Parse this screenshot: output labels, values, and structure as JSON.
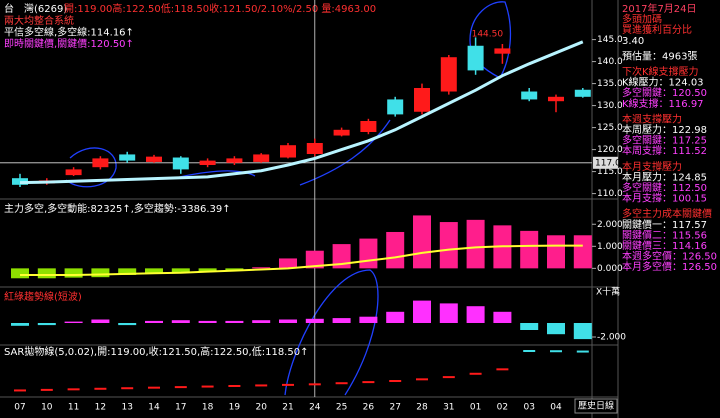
{
  "chart_data": {
    "type": "candlestick",
    "header": {
      "name": "台　灣(6269)",
      "quote": "開:119.00高:122.50低:118.50收:121.50/2.10%/2.50 量:4963.00"
    },
    "legend_lines": [
      {
        "text": "兩大均整合系統",
        "color": "#ff3b3b"
      },
      {
        "text": "平信多空線,多空線:114.16↑",
        "color": "#ffffff"
      },
      {
        "text": "即時關鍵價,關鍵價:120.50↑",
        "color": "#ff40ff"
      }
    ],
    "categories": [
      "07",
      "10",
      "11",
      "12",
      "13",
      "14",
      "17",
      "18",
      "19",
      "20",
      "21",
      "24",
      "25",
      "26",
      "27",
      "28",
      "31",
      "01",
      "02",
      "03",
      "04",
      null
    ],
    "open": [
      113.5,
      112.3,
      114.2,
      116,
      118.9,
      117.2,
      118.2,
      116.5,
      117,
      117.2,
      118.2,
      119,
      123.2,
      124,
      131.4,
      128.6,
      133.2,
      143.6,
      141.8,
      133.2,
      131,
      133.6
    ],
    "high": [
      114.5,
      113.5,
      116,
      118.5,
      119.5,
      118.8,
      118.5,
      118,
      118.5,
      119.2,
      121.5,
      122.5,
      125,
      127,
      132,
      135,
      141.5,
      145.5,
      144,
      134,
      132.5,
      134
    ],
    "low": [
      111.5,
      112,
      114,
      115.5,
      117,
      117,
      114.5,
      116,
      116.5,
      117,
      118,
      118.5,
      123,
      123.5,
      127.5,
      128,
      132.5,
      137,
      139.5,
      131,
      128.5,
      131.8
    ],
    "close": [
      112,
      113,
      115.5,
      118,
      117.5,
      118.4,
      115.5,
      117.5,
      118,
      118.9,
      121,
      121.5,
      124.5,
      126.5,
      128,
      134,
      141,
      138,
      143,
      131.4,
      132,
      132
    ],
    "up_color": "#ff1a1a",
    "down_color": "#40e0e8",
    "ma": {
      "color": "#b8f4ff",
      "values": [
        112.5,
        112.6,
        112.8,
        113,
        113.2,
        113.4,
        113.6,
        113.8,
        114.5,
        115.2,
        116.5,
        118,
        120,
        122,
        124.5,
        127.5,
        130.5,
        133.5,
        136.8,
        139.5,
        142,
        144.5
      ]
    },
    "ylim": [
      109,
      149
    ],
    "yticks": [
      {
        "value": 145,
        "label": "145.0"
      },
      {
        "value": 140,
        "label": "140.0"
      },
      {
        "value": 135,
        "label": "135.0"
      },
      {
        "value": 130,
        "label": "130.0"
      },
      {
        "value": 125,
        "label": "125.0"
      },
      {
        "value": 120,
        "label": "120.0"
      },
      {
        "value": 115,
        "label": "115.0"
      },
      {
        "value": 110,
        "label": "110.0"
      }
    ],
    "crosshair": {
      "value": 117,
      "label": "117.0",
      "index": 11
    },
    "annotation": {
      "text": "144.50",
      "value": 144.5,
      "index": 17
    },
    "main_force": {
      "title": "主力多空,多空動能:82325↑,多空趨勢:-3386.39↑",
      "values": [
        -0.45,
        -0.45,
        -0.42,
        -0.4,
        -0.3,
        -0.22,
        -0.18,
        -0.12,
        -0.08,
        0.05,
        0.45,
        0.8,
        1.1,
        1.35,
        1.65,
        2.4,
        2.1,
        2.2,
        1.95,
        1.7,
        1.5,
        1.5
      ],
      "neg_color": "#8fe000",
      "pos_color": "#ff1e8c",
      "line": {
        "color": "#ffff30",
        "values": [
          -0.3,
          -0.3,
          -0.3,
          -0.28,
          -0.25,
          -0.22,
          -0.2,
          -0.15,
          -0.1,
          -0.05,
          0,
          0.1,
          0.2,
          0.35,
          0.5,
          0.7,
          0.85,
          0.95,
          1.0,
          1.02,
          1.03,
          1.03
        ]
      },
      "ylim": [
        -0.8,
        3.1
      ],
      "yticks": [
        {
          "value": 2,
          "label": "2.000"
        },
        {
          "value": 1,
          "label": "1.000"
        },
        {
          "value": 0,
          "label": "0.000"
        }
      ]
    },
    "trend": {
      "title": "紅綠趨勢線(短波)",
      "unit_label": "X十萬",
      "values": [
        -0.4,
        -0.3,
        0.2,
        0.5,
        -0.3,
        0.3,
        0.4,
        0.3,
        0.3,
        0.4,
        0.5,
        0.6,
        0.7,
        0.9,
        1.6,
        3.2,
        2.8,
        2.4,
        1.6,
        -1.0,
        -1.6,
        -2.3
      ],
      "neg_color": "#40e0e8",
      "pos_color": "#ff30ff",
      "ylim": [
        -3,
        5
      ],
      "yticks": [
        {
          "value": -2,
          "label": "-2.000"
        }
      ]
    },
    "sar": {
      "title": "SAR拋物線(5,0.02),開:119.00,收:121.50,高:122.50,低:118.50↑",
      "values": [
        110,
        110.5,
        111,
        111.5,
        112,
        112.5,
        113,
        113.5,
        114,
        114.5,
        115,
        115.5,
        116.5,
        117.5,
        118.5,
        120,
        122,
        125,
        129,
        145.5,
        145.3,
        145
      ],
      "ylim": [
        105,
        150
      ]
    },
    "period_label": "歷史日線",
    "info": [
      [
        {
          "text": "2017年7月24日",
          "color": "#ff4060"
        },
        {
          "text": "多頭加碼",
          "color": "#ff3030"
        },
        {
          "text": "買進獲利百分比",
          "color": "#ff3030"
        },
        {
          "text": "3.40",
          "color": "#ffffff"
        }
      ],
      [
        {
          "text": "預估量：4963張",
          "color": "#ffffff"
        }
      ],
      [
        {
          "text": "下次K線支撐壓力",
          "color": "#ff3030"
        },
        {
          "text": "K線壓力：124.03",
          "color": "#ffffff"
        },
        {
          "text": "多空關鍵：120.50",
          "color": "#ff40ff"
        },
        {
          "text": "K線支撐：116.97",
          "color": "#ff40ff"
        }
      ],
      [
        {
          "text": "本週支撐壓力",
          "color": "#ff3030"
        },
        {
          "text": "本周壓力：122.98",
          "color": "#ffffff"
        },
        {
          "text": "多空關鍵：117.25",
          "color": "#ff40ff"
        },
        {
          "text": "本周支撐：111.52",
          "color": "#ff40ff"
        }
      ],
      [
        {
          "text": "本月支撐壓力",
          "color": "#ff3030"
        },
        {
          "text": "本月壓力：124.85",
          "color": "#ffffff"
        },
        {
          "text": "多空關鍵：112.50",
          "color": "#ff40ff"
        },
        {
          "text": "本月支撐：100.15",
          "color": "#ff40ff"
        }
      ],
      [
        {
          "text": "多空主力成本關鍵價",
          "color": "#ff3030"
        },
        {
          "text": "關鍵價一：117.57",
          "color": "#ffffff"
        },
        {
          "text": "關鍵價二：115.56",
          "color": "#ff40ff"
        },
        {
          "text": "關鍵價三：114.16",
          "color": "#ff40ff"
        },
        {
          "text": "本週多空價：126.50",
          "color": "#ff40ff"
        },
        {
          "text": "本月多空價：126.50",
          "color": "#ff40ff"
        }
      ]
    ]
  }
}
